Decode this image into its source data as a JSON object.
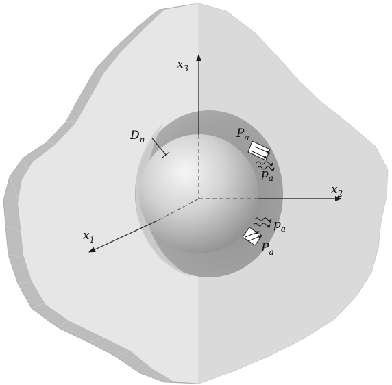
{
  "labels": {
    "axis_x3": {
      "main": "x",
      "sub": "3"
    },
    "axis_x2": {
      "main": "x",
      "sub": "2"
    },
    "axis_x1": {
      "main": "x",
      "sub": "1"
    },
    "cavity_label": {
      "main": "D",
      "sub": "n"
    },
    "upper_P": {
      "main": "P",
      "sub": "a"
    },
    "upper_p": {
      "main": "p",
      "sub": "a"
    },
    "lower_p": {
      "main": "p",
      "sub": "a"
    },
    "lower_P": {
      "main": "P",
      "sub": "a"
    }
  },
  "colors": {
    "body_light": "#e9e9e9",
    "body_mid": "#d9d9d9",
    "body_side": "#b9b9b9",
    "cavity": "#9a9a9a",
    "sphere_light": "#f4f4f4",
    "sphere_dark": "#8a8a8a",
    "axis": "#1a1a1a"
  }
}
